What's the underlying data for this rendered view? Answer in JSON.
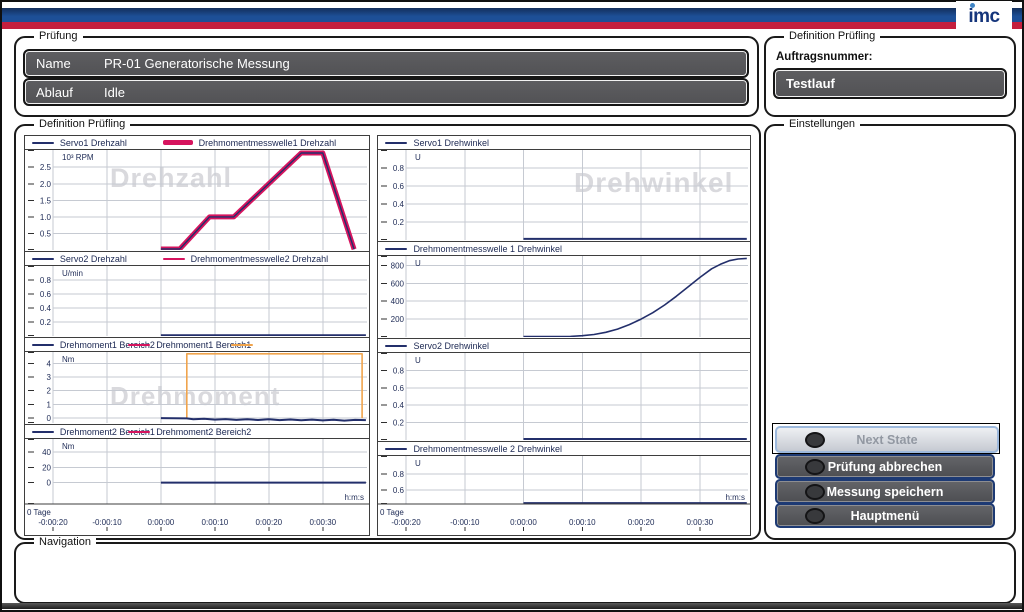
{
  "window": {
    "logo_text": "imc"
  },
  "colors": {
    "header_blue": "#1d4f97",
    "header_red": "#c41f3e",
    "curve_navy": "#232f6b",
    "curve_magenta": "#d6145e",
    "curve_orange": "#f0a44c",
    "field_gray": "#58585a",
    "button_border_blue": "#1d3a74",
    "watermark_gray": "#d9d9dd"
  },
  "pruefung": {
    "box_label": "Prüfung",
    "fields": [
      {
        "label": "Name",
        "value": "PR-01 Generatorische Messung"
      },
      {
        "label": "Ablauf",
        "value": "Idle"
      }
    ]
  },
  "definition_pruefling": {
    "box_label": "Definition Prüfling",
    "auftragsnummer_label": "Auftragsnummer:",
    "auftragsnummer_value": "Testlauf"
  },
  "charts_box": {
    "box_label": "Definition Prüfling"
  },
  "einstellungen": {
    "box_label": "Einstellungen",
    "buttons": [
      {
        "label": "Next State",
        "state": "disabled"
      },
      {
        "label": "Prüfung abbrechen",
        "state": "enabled"
      },
      {
        "label": "Messung speichern",
        "state": "enabled"
      },
      {
        "label": "Hauptmenü",
        "state": "enabled"
      }
    ]
  },
  "navigation": {
    "box_label": "Navigation"
  },
  "chart_data": {
    "time_axis": {
      "xlim": [
        -20,
        38.2
      ],
      "xticks": [
        -20,
        -10,
        0,
        10,
        20,
        30
      ],
      "xtick_labels": [
        "-0:00:20",
        "-0:00:10",
        "0:00:00",
        "0:00:10",
        "0:00:20",
        "0:00:30"
      ],
      "unit": "h:m:s",
      "day_label": "0 Tage"
    },
    "charts": [
      {
        "type": "line",
        "column": "left",
        "legend": [
          {
            "label": "Servo1 Drehzahl",
            "color": "#232f6b",
            "thick": 2,
            "pos": 0.02
          },
          {
            "label": "Drehmomentmesswelle1 Drehzahl",
            "color": "#d6145e",
            "thick": 5,
            "pos": 0.4
          }
        ],
        "unit": "10³ RPM",
        "watermark": {
          "text": "Drehzahl",
          "x": 0.18,
          "y": 0.37,
          "size": 27
        },
        "ylim": [
          0,
          3.02
        ],
        "yticks": [
          {
            "v": 0.5,
            "label": "0.5"
          },
          {
            "v": 1,
            "label": "1.0"
          },
          {
            "v": 1.5,
            "label": "1.5"
          },
          {
            "v": 2,
            "label": "2.0"
          },
          {
            "v": 2.5,
            "label": "2.5"
          }
        ],
        "xaxis": false,
        "series": [
          {
            "id": "drehmomentmesswelle1-drehzahl",
            "name": "Drehmomentmesswelle1 Drehzahl",
            "color": "#d6145e",
            "width": 5,
            "points": [
              [
                0,
                0.03
              ],
              [
                3.5,
                0.03
              ],
              [
                9,
                1.0
              ],
              [
                13.5,
                1.0
              ],
              [
                26,
                2.93
              ],
              [
                30,
                2.93
              ],
              [
                35.8,
                0.02
              ]
            ]
          },
          {
            "id": "servo1-drehzahl",
            "name": "Servo1 Drehzahl",
            "color": "#232f6b",
            "width": 1.4,
            "points": [
              [
                0,
                0.03
              ],
              [
                3.5,
                0.03
              ],
              [
                9,
                1.0
              ],
              [
                13.5,
                1.0
              ],
              [
                26,
                2.93
              ],
              [
                30,
                2.93
              ],
              [
                35.8,
                0.02
              ]
            ]
          }
        ]
      },
      {
        "type": "line",
        "column": "left",
        "legend": [
          {
            "label": "Servo2 Drehzahl",
            "color": "#232f6b",
            "thick": 2,
            "pos": 0.02
          },
          {
            "label": "Drehmomentmesswelle2 Drehzahl",
            "color": "#d6145e",
            "thick": 2,
            "pos": 0.4
          }
        ],
        "unit": "U/min",
        "ylim": [
          0,
          1.0
        ],
        "yticks": [
          {
            "v": 0.2,
            "label": "0.2"
          },
          {
            "v": 0.4,
            "label": "0.4"
          },
          {
            "v": 0.6,
            "label": "0.6"
          },
          {
            "v": 0.8,
            "label": "0.8"
          }
        ],
        "xaxis": false,
        "series": [
          {
            "id": "servo2-drehzahl",
            "name": "Servo2 Drehzahl",
            "color": "#232f6b",
            "width": 2,
            "points": [
              [
                0,
                0.012
              ],
              [
                38,
                0.012
              ]
            ]
          }
        ]
      },
      {
        "type": "line",
        "column": "left",
        "legend": [
          {
            "label": "Drehmoment1 Bereich2",
            "color": "#232f6b",
            "thick": 2,
            "pos": 0.02
          },
          {
            "label": "Drehmoment1 Bereich1",
            "color": "#d6145e",
            "thick": 2,
            "pos": 0.3
          },
          {
            "label": "",
            "color": "#f0a44c",
            "thick": 2,
            "pos": 0.6
          }
        ],
        "unit": "Nm",
        "watermark": {
          "text": "Drehmoment",
          "x": 0.18,
          "y": 0.74,
          "size": 26
        },
        "ylim": [
          -0.38,
          4.85
        ],
        "yticks": [
          {
            "v": 0,
            "label": "0"
          },
          {
            "v": 1,
            "label": "1"
          },
          {
            "v": 2,
            "label": "2"
          },
          {
            "v": 3,
            "label": "3"
          },
          {
            "v": 4,
            "label": "4"
          }
        ],
        "xaxis": false,
        "series": [
          {
            "id": "drehmoment1-bereich1-grenze",
            "name": "Drehmoment1 Bereich1",
            "color": "#f0a44c",
            "width": 1.6,
            "points": [
              [
                4.8,
                -0.02
              ],
              [
                4.8,
                4.72
              ],
              [
                37.3,
                4.72
              ],
              [
                37.3,
                -0.02
              ]
            ]
          },
          {
            "id": "drehmoment1-bereich2",
            "name": "Drehmoment1 Bereich2",
            "color": "#232f6b",
            "width": 2,
            "points": [
              [
                0,
                -0.02
              ],
              [
                4.8,
                -0.04
              ],
              [
                6,
                -0.1
              ],
              [
                8,
                -0.07
              ],
              [
                10,
                -0.13
              ],
              [
                12,
                -0.09
              ],
              [
                14,
                -0.15
              ],
              [
                16,
                -0.1
              ],
              [
                18,
                -0.16
              ],
              [
                20,
                -0.11
              ],
              [
                22,
                -0.17
              ],
              [
                24,
                -0.12
              ],
              [
                26,
                -0.18
              ],
              [
                28,
                -0.13
              ],
              [
                30,
                -0.19
              ],
              [
                32,
                -0.14
              ],
              [
                34,
                -0.2
              ],
              [
                36,
                -0.15
              ],
              [
                38,
                -0.17
              ]
            ]
          }
        ]
      },
      {
        "type": "line",
        "column": "left",
        "legend": [
          {
            "label": "Drehmoment2 Bereich1",
            "color": "#232f6b",
            "thick": 2,
            "pos": 0.02
          },
          {
            "label": "Drehmoment2 Bereich2",
            "color": "#d6145e",
            "thick": 2,
            "pos": 0.3
          }
        ],
        "unit": "Nm",
        "ylim": [
          -28,
          57
        ],
        "yticks": [
          {
            "v": 0,
            "label": "0"
          },
          {
            "v": 20,
            "label": "20"
          },
          {
            "v": 40,
            "label": "40"
          }
        ],
        "xaxis": true,
        "series": [
          {
            "id": "drehmoment2-bereich1",
            "name": "Drehmoment2 Bereich1",
            "color": "#232f6b",
            "width": 2,
            "points": [
              [
                0,
                0
              ],
              [
                38,
                0
              ]
            ]
          }
        ]
      },
      {
        "type": "line",
        "column": "right",
        "legend": [
          {
            "label": "Servo1 Drehwinkel",
            "color": "#232f6b",
            "thick": 2,
            "pos": 0.02
          }
        ],
        "unit": "U",
        "watermark": {
          "text": "Drehwinkel",
          "x": 0.49,
          "y": 0.47,
          "size": 28
        },
        "ylim": [
          0,
          1.0
        ],
        "yticks": [
          {
            "v": 0.2,
            "label": "0.2"
          },
          {
            "v": 0.4,
            "label": "0.4"
          },
          {
            "v": 0.6,
            "label": "0.6"
          },
          {
            "v": 0.8,
            "label": "0.8"
          }
        ],
        "xaxis": false,
        "series": [
          {
            "id": "servo1-drehwinkel",
            "name": "Servo1 Drehwinkel",
            "color": "#232f6b",
            "width": 2,
            "points": [
              [
                0,
                0.012
              ],
              [
                38,
                0.012
              ]
            ]
          }
        ]
      },
      {
        "type": "line",
        "column": "right",
        "legend": [
          {
            "label": "Drehmomentmesswelle 1 Drehwinkel",
            "color": "#232f6b",
            "thick": 2,
            "pos": 0.02
          }
        ],
        "unit": "U",
        "ylim": [
          0,
          905
        ],
        "yticks": [
          {
            "v": 200,
            "label": "200"
          },
          {
            "v": 400,
            "label": "400"
          },
          {
            "v": 600,
            "label": "600"
          },
          {
            "v": 800,
            "label": "800"
          }
        ],
        "xaxis": false,
        "series": [
          {
            "id": "drehmomentmesswelle-1-drehwinkel",
            "name": "Drehmomentmesswelle 1 Drehwinkel",
            "color": "#232f6b",
            "width": 1.6,
            "points": [
              [
                0,
                4
              ],
              [
                6,
                4
              ],
              [
                8,
                7
              ],
              [
                10,
                14
              ],
              [
                12,
                28
              ],
              [
                14,
                52
              ],
              [
                16,
                88
              ],
              [
                18,
                138
              ],
              [
                20,
                200
              ],
              [
                22,
                272
              ],
              [
                24,
                358
              ],
              [
                26,
                455
              ],
              [
                28,
                560
              ],
              [
                30,
                665
              ],
              [
                32,
                762
              ],
              [
                33.5,
                812
              ],
              [
                35,
                852
              ],
              [
                36.5,
                872
              ],
              [
                38,
                878
              ]
            ]
          }
        ]
      },
      {
        "type": "line",
        "column": "right",
        "legend": [
          {
            "label": "Servo2 Drehwinkel",
            "color": "#232f6b",
            "thick": 2,
            "pos": 0.02
          }
        ],
        "unit": "U",
        "ylim": [
          0,
          1.0
        ],
        "yticks": [
          {
            "v": 0.2,
            "label": "0.2"
          },
          {
            "v": 0.4,
            "label": "0.4"
          },
          {
            "v": 0.6,
            "label": "0.6"
          },
          {
            "v": 0.8,
            "label": "0.8"
          }
        ],
        "xaxis": false,
        "series": [
          {
            "id": "servo2-drehwinkel",
            "name": "Servo2 Drehwinkel",
            "color": "#232f6b",
            "width": 2,
            "points": [
              [
                0,
                0.012
              ],
              [
                38,
                0.012
              ]
            ]
          }
        ]
      },
      {
        "type": "line",
        "column": "right",
        "legend": [
          {
            "label": "Drehmomentmesswelle 2 Drehwinkel",
            "color": "#232f6b",
            "thick": 2,
            "pos": 0.02
          }
        ],
        "unit": "U",
        "ylim": [
          0.42,
          1.03
        ],
        "yticks": [
          {
            "v": 0.8,
            "label": "0.8"
          },
          {
            "v": 0.6,
            "label": "0.6"
          }
        ],
        "xaxis": true,
        "series": [
          {
            "id": "drehmomentmesswelle-2-drehwinkel",
            "name": "Drehmomentmesswelle 2 Drehwinkel",
            "color": "#232f6b",
            "width": 2,
            "points": [
              [
                0,
                0.432
              ],
              [
                38,
                0.432
              ]
            ]
          }
        ]
      }
    ]
  }
}
